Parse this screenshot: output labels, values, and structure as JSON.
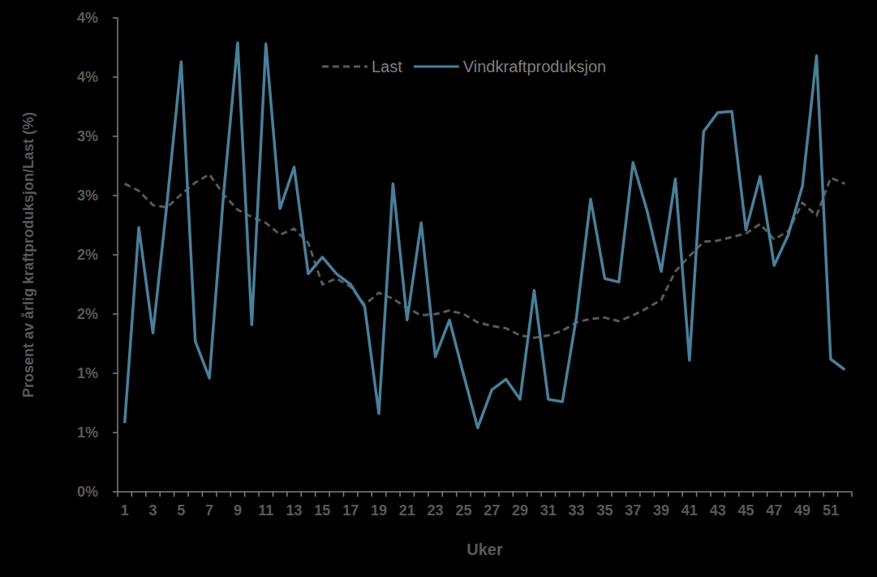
{
  "chart_data": {
    "type": "line",
    "x_label": "Uker",
    "y_label": "Prosent av årlig kraftproduksjon/Last (%)",
    "categories": [
      1,
      null,
      3,
      null,
      5,
      null,
      7,
      null,
      9,
      null,
      11,
      null,
      13,
      null,
      15,
      null,
      17,
      null,
      19,
      null,
      21,
      null,
      23,
      null,
      25,
      null,
      27,
      null,
      29,
      null,
      31,
      null,
      33,
      null,
      35,
      null,
      37,
      null,
      39,
      null,
      41,
      null,
      43,
      null,
      45,
      null,
      47,
      null,
      49,
      null,
      51,
      null
    ],
    "series": [
      {
        "name": "Last",
        "color": "#595959",
        "line_style": "dashed",
        "values": [
          2.6,
          2.54,
          2.42,
          2.4,
          2.51,
          2.61,
          2.68,
          2.51,
          2.38,
          2.32,
          2.27,
          2.17,
          2.22,
          2.1,
          1.75,
          1.8,
          1.73,
          1.58,
          1.68,
          1.63,
          1.55,
          1.49,
          1.5,
          1.53,
          1.5,
          1.43,
          1.4,
          1.38,
          1.32,
          1.3,
          1.32,
          1.36,
          1.43,
          1.46,
          1.47,
          1.44,
          1.49,
          1.55,
          1.62,
          1.86,
          1.99,
          2.11,
          2.12,
          2.15,
          2.18,
          2.26,
          2.13,
          2.2,
          2.44,
          2.33,
          2.65,
          2.6
        ]
      },
      {
        "name": "Vindkraftproduksjon",
        "color": "#4a7f9b",
        "line_style": "solid",
        "values": [
          0.58,
          2.23,
          1.34,
          2.44,
          3.63,
          1.27,
          0.96,
          2.51,
          3.79,
          1.41,
          3.78,
          2.39,
          2.74,
          1.84,
          1.98,
          1.84,
          1.75,
          1.56,
          0.66,
          2.6,
          1.45,
          2.27,
          1.14,
          1.45,
          0.99,
          0.54,
          0.86,
          0.95,
          0.78,
          1.7,
          0.78,
          0.76,
          1.48,
          2.47,
          1.8,
          1.77,
          2.78,
          2.37,
          1.86,
          2.64,
          1.11,
          3.04,
          3.2,
          3.21,
          2.21,
          2.66,
          1.91,
          2.17,
          2.58,
          3.68,
          1.12,
          1.03
        ]
      }
    ],
    "ylim": [
      0,
      4
    ],
    "yticks": [
      {
        "value": 0,
        "label": "0%"
      },
      {
        "value": 0.5,
        "label": "1%"
      },
      {
        "value": 1,
        "label": "1%"
      },
      {
        "value": 1.5,
        "label": "2%"
      },
      {
        "value": 2,
        "label": "2%"
      },
      {
        "value": 2.5,
        "label": "3%"
      },
      {
        "value": 3,
        "label": "3%"
      },
      {
        "value": 3.5,
        "label": "4%"
      },
      {
        "value": 4,
        "label": "4%"
      }
    ],
    "grid": false,
    "legend": "top",
    "tick_labels": true
  }
}
